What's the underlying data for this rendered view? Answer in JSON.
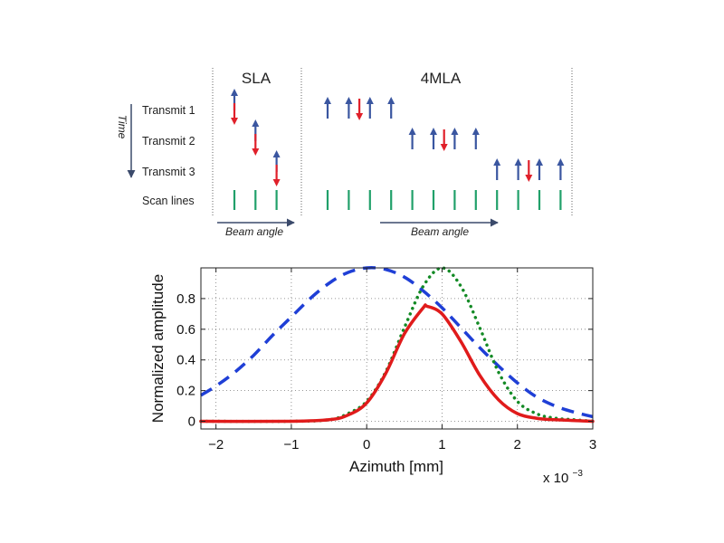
{
  "diagram": {
    "sla_title": "SLA",
    "mla_title": "4MLA",
    "time_label": "Time",
    "row_labels": [
      "Transmit 1",
      "Transmit 2",
      "Transmit 3",
      "Scan lines"
    ],
    "beam_angle_label": "Beam angle",
    "colors": {
      "receive": "#3a56a0",
      "transmit": "#e0202a",
      "scan": "#21a06a",
      "axis": "#3b4a6b"
    },
    "sla": {
      "transmits": [
        {
          "receive": [
            0
          ],
          "transmit": 0
        },
        {
          "receive": [
            1
          ],
          "transmit": 1
        },
        {
          "receive": [
            2
          ],
          "transmit": 2
        }
      ],
      "scan_lines": [
        0,
        1,
        2
      ]
    },
    "mla": {
      "transmits": [
        {
          "receive": [
            0,
            1,
            2,
            3
          ],
          "transmit": 1.5
        },
        {
          "receive": [
            4,
            5,
            6,
            7
          ],
          "transmit": 5.5
        },
        {
          "receive": [
            8,
            9,
            10,
            11
          ],
          "transmit": 9.5
        }
      ],
      "scan_lines": [
        0,
        1,
        2,
        3,
        4,
        5,
        6,
        7,
        8,
        9,
        10,
        11
      ]
    }
  },
  "chart_data": {
    "type": "line",
    "xlabel": "Azimuth [mm]",
    "ylabel": "Normalized amplitude",
    "x_multiplier": "x 10",
    "x_multiplier_exp": "−3",
    "xlim": [
      -2.2,
      3.0
    ],
    "ylim": [
      -0.05,
      1.0
    ],
    "xticks": [
      -2,
      -1,
      0,
      1,
      2,
      3
    ],
    "xtick_labels": [
      "−2",
      "−1",
      "0",
      "1",
      "2",
      "3"
    ],
    "yticks": [
      0,
      0.2,
      0.4,
      0.6,
      0.8
    ],
    "ytick_labels": [
      "0",
      "0.2",
      "0.4",
      "0.6",
      "0.8"
    ],
    "grid": true,
    "series": [
      {
        "style": "dashed",
        "color": "#1f3fd6",
        "x": [
          -2.2,
          -2.0,
          -1.75,
          -1.5,
          -1.25,
          -1.0,
          -0.75,
          -0.5,
          -0.25,
          0.0,
          0.25,
          0.5,
          0.75,
          1.0,
          1.25,
          1.5,
          1.75,
          2.0,
          2.25,
          2.5,
          2.75,
          3.0
        ],
        "y": [
          0.17,
          0.23,
          0.32,
          0.43,
          0.56,
          0.68,
          0.8,
          0.9,
          0.97,
          1.0,
          0.99,
          0.94,
          0.85,
          0.74,
          0.61,
          0.48,
          0.36,
          0.25,
          0.16,
          0.1,
          0.06,
          0.03
        ]
      },
      {
        "style": "dotted",
        "color": "#138a25",
        "x": [
          -2.2,
          -1.0,
          -0.5,
          -0.25,
          0.0,
          0.25,
          0.5,
          0.75,
          1.0,
          1.25,
          1.5,
          1.75,
          2.0,
          2.25,
          2.5,
          2.75,
          3.0
        ],
        "y": [
          0.0,
          0.0,
          0.01,
          0.05,
          0.13,
          0.32,
          0.61,
          0.88,
          1.0,
          0.88,
          0.61,
          0.32,
          0.13,
          0.05,
          0.02,
          0.01,
          0.0
        ]
      },
      {
        "style": "solid",
        "color": "#e01b1b",
        "x": [
          -2.2,
          -1.0,
          -0.5,
          -0.25,
          0.0,
          0.25,
          0.5,
          0.75,
          0.8,
          1.0,
          1.25,
          1.5,
          1.75,
          2.0,
          2.25,
          2.5,
          3.0
        ],
        "y": [
          0.0,
          0.0,
          0.01,
          0.04,
          0.12,
          0.31,
          0.57,
          0.74,
          0.75,
          0.7,
          0.52,
          0.3,
          0.14,
          0.05,
          0.02,
          0.01,
          0.0
        ]
      }
    ]
  }
}
